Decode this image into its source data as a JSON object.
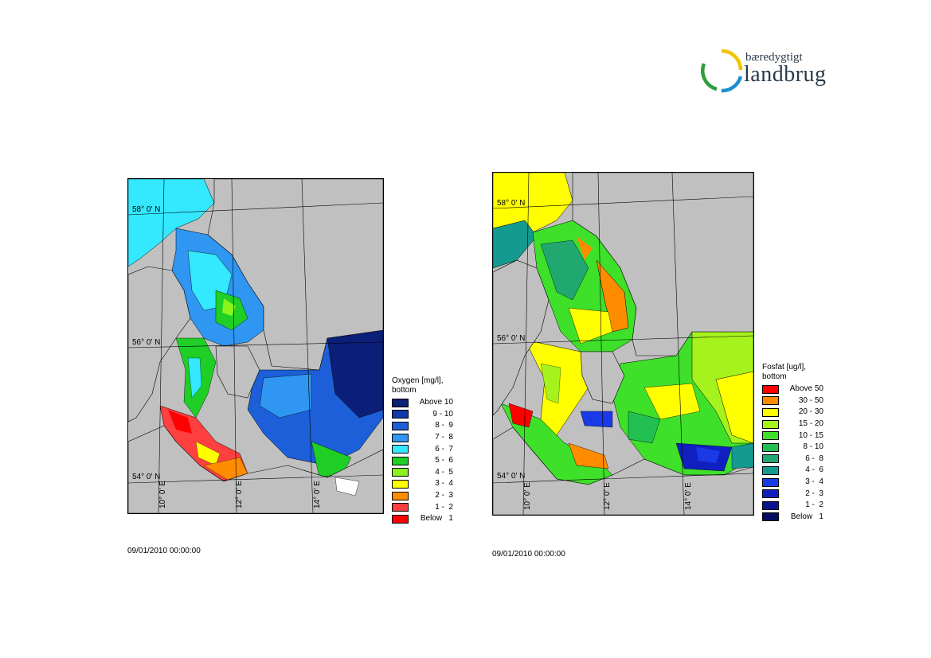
{
  "logo": {
    "line1": "bæredygtigt",
    "line2": "landbrug",
    "colors": {
      "yellow": "#f4c400",
      "green": "#2e9e3e",
      "blue": "#1a8fd0"
    }
  },
  "maps": [
    {
      "legend_title_1": "Oxygen [mg/l],",
      "legend_title_2": "bottom",
      "legend": [
        {
          "label": "Above 10",
          "color": "#0b1e78"
        },
        {
          "label": "9 - 10",
          "color": "#0f3aa8"
        },
        {
          "label": "8 -  9",
          "color": "#1c5fd8"
        },
        {
          "label": "7 -  8",
          "color": "#2f96f2"
        },
        {
          "label": "6 -  7",
          "color": "#34e8ff"
        },
        {
          "label": "5 -  6",
          "color": "#1fcf25"
        },
        {
          "label": "4 -  5",
          "color": "#8cf21c"
        },
        {
          "label": "3 -  4",
          "color": "#ffff00"
        },
        {
          "label": "2 -  3",
          "color": "#ff8c00"
        },
        {
          "label": "1 -  2",
          "color": "#ff4040"
        },
        {
          "label": "Below   1",
          "color": "#ff0000"
        }
      ],
      "lat_labels": [
        "58° 0' N",
        "56° 0' N",
        "54° 0' N"
      ],
      "lon_labels": [
        "10° 0' E",
        "12° 0' E",
        "14° 0' E"
      ],
      "timestamp": "09/01/2010 00:00:00"
    },
    {
      "legend_title_1": "Fosfat [ug/l],",
      "legend_title_2": "bottom",
      "legend": [
        {
          "label": "Above 50",
          "color": "#ff0000"
        },
        {
          "label": "30 - 50",
          "color": "#ff8c00"
        },
        {
          "label": "20 - 30",
          "color": "#ffff00"
        },
        {
          "label": "15 - 20",
          "color": "#a6f21c"
        },
        {
          "label": "10 - 15",
          "color": "#3ee02a"
        },
        {
          "label": "8 - 10",
          "color": "#22c050"
        },
        {
          "label": "6 -  8",
          "color": "#20a870"
        },
        {
          "label": "4 -  6",
          "color": "#159a90"
        },
        {
          "label": "3 -  4",
          "color": "#1a3ae8"
        },
        {
          "label": "2 -  3",
          "color": "#1020c0"
        },
        {
          "label": "1 -  2",
          "color": "#0a1490"
        },
        {
          "label": "Below   1",
          "color": "#060c60"
        }
      ],
      "lat_labels": [
        "58° 0' N",
        "56° 0' N",
        "54° 0' N"
      ],
      "lon_labels": [
        "10° 0' E",
        "12° 0' E",
        "14° 0' E"
      ],
      "timestamp": "09/01/2010 00:00:00"
    }
  ]
}
